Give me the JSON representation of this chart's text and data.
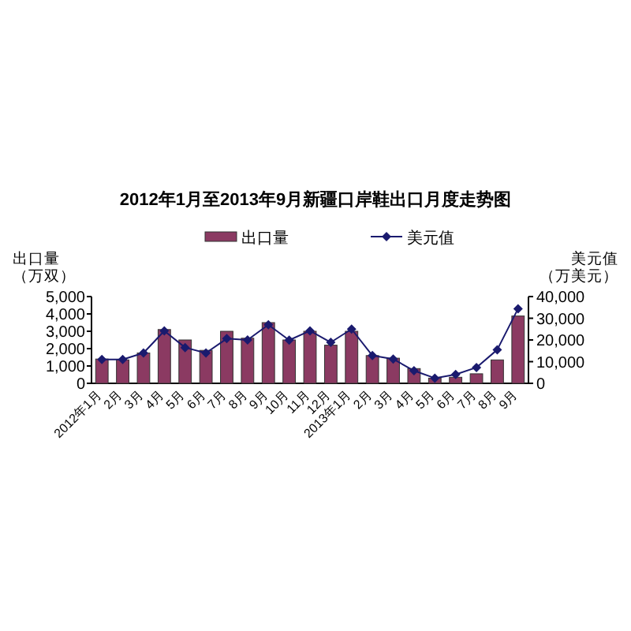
{
  "chart_data": {
    "type": "bar",
    "title": "2012年1月至2013年9月新疆口岸鞋出口月度走势图",
    "ylabel": "出口量（万双）",
    "y2label": "美元值（万美元）",
    "categories": [
      "2012年1月",
      "2月",
      "3月",
      "4月",
      "5月",
      "6月",
      "7月",
      "8月",
      "9月",
      "10月",
      "11月",
      "12月",
      "2013年1月",
      "2月",
      "3月",
      "4月",
      "5月",
      "6月",
      "7月",
      "8月",
      "9月"
    ],
    "series": [
      {
        "name": "出口量",
        "color": "#8b3a62",
        "values": [
          1400,
          1350,
          1750,
          3100,
          2500,
          1900,
          3000,
          2600,
          3500,
          2500,
          3000,
          2200,
          3000,
          1600,
          1450,
          850,
          300,
          350,
          550,
          1350,
          3880
        ]
      },
      {
        "name": "美元值",
        "type": "line",
        "axis": "y2",
        "color": "#1a1a6e",
        "marker": "diamond",
        "values": [
          11000,
          11000,
          14000,
          24200,
          16500,
          14000,
          20600,
          20000,
          27000,
          19900,
          24200,
          18900,
          25000,
          12800,
          11200,
          5800,
          2400,
          4100,
          7300,
          15500,
          34400
        ]
      }
    ],
    "ylim": [
      0,
      5000
    ],
    "yticks": [
      {
        "value": 0,
        "label": "0"
      },
      {
        "value": 1000,
        "label": "1,000"
      },
      {
        "value": 2000,
        "label": "2,000"
      },
      {
        "value": 3000,
        "label": "3,000"
      },
      {
        "value": 4000,
        "label": "4,000"
      },
      {
        "value": 5000,
        "label": "5,000"
      }
    ],
    "y2lim": [
      0,
      40000
    ],
    "y2ticks": [
      {
        "value": 0,
        "label": "0"
      },
      {
        "value": 10000,
        "label": "10,000"
      },
      {
        "value": 20000,
        "label": "20,000"
      },
      {
        "value": 30000,
        "label": "30,000"
      },
      {
        "value": 40000,
        "label": "40,000"
      }
    ],
    "grid": false,
    "legend": "top"
  }
}
